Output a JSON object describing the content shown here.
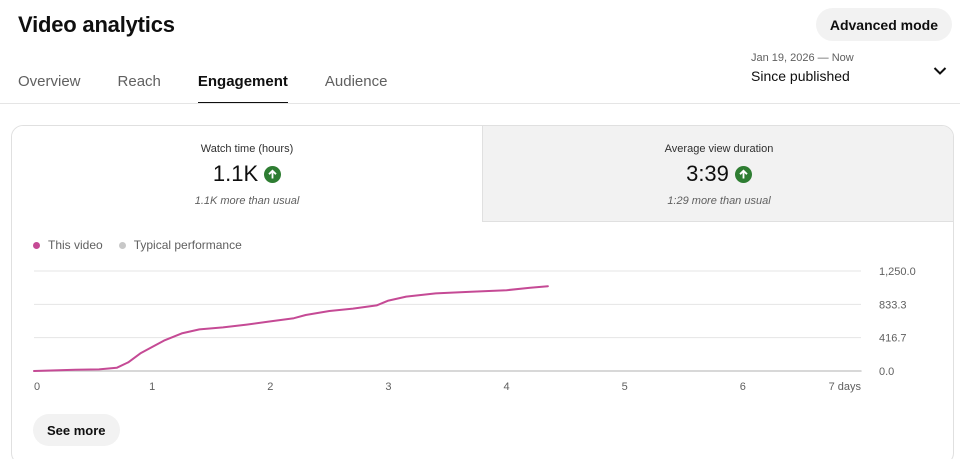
{
  "header": {
    "title": "Video analytics",
    "advanced_mode_label": "Advanced mode"
  },
  "tabs": [
    {
      "label": "Overview",
      "active": false
    },
    {
      "label": "Reach",
      "active": false
    },
    {
      "label": "Engagement",
      "active": true
    },
    {
      "label": "Audience",
      "active": false
    }
  ],
  "date_picker": {
    "range": "Jan 19, 2026 — Now",
    "label": "Since published",
    "icon": "chevron-down-icon"
  },
  "metrics": [
    {
      "label": "Watch time (hours)",
      "value": "1.1K",
      "note": "1.1K more than usual",
      "trend": "up",
      "selected": true
    },
    {
      "label": "Average view duration",
      "value": "3:39",
      "note": "1:29 more than usual",
      "trend": "up",
      "selected": false
    }
  ],
  "legend": [
    {
      "label": "This video",
      "color": "#c54a95"
    },
    {
      "label": "Typical performance",
      "color": "#c8c8c8"
    }
  ],
  "colors": {
    "accent_line": "#c54a95",
    "typical_line": "#cccccc",
    "trend_up": "#2e7d32"
  },
  "chart_data": {
    "type": "line",
    "x_tick_labels": [
      "0",
      "1",
      "2",
      "3",
      "4",
      "5",
      "6",
      "7 days"
    ],
    "y_tick_labels": [
      "1,250.0",
      "833.3",
      "416.7",
      "0.0"
    ],
    "xlim": [
      0,
      7
    ],
    "ylim": [
      0,
      1250
    ],
    "grid": true,
    "series": [
      {
        "name": "This video",
        "color": "#c54a95",
        "x": [
          0,
          0.35,
          0.55,
          0.7,
          0.8,
          0.9,
          1.0,
          1.1,
          1.25,
          1.4,
          1.6,
          1.8,
          2.0,
          2.2,
          2.3,
          2.5,
          2.7,
          2.9,
          3.0,
          3.15,
          3.4,
          3.7,
          4.0,
          4.2,
          4.35
        ],
        "y": [
          0,
          15,
          20,
          40,
          110,
          220,
          300,
          380,
          470,
          520,
          545,
          580,
          620,
          660,
          700,
          750,
          780,
          820,
          880,
          930,
          970,
          990,
          1010,
          1040,
          1060
        ]
      },
      {
        "name": "Typical performance",
        "color": "#cccccc",
        "x": [
          0,
          7
        ],
        "y": [
          0,
          0
        ]
      }
    ]
  },
  "footer": {
    "see_more_label": "See more"
  }
}
